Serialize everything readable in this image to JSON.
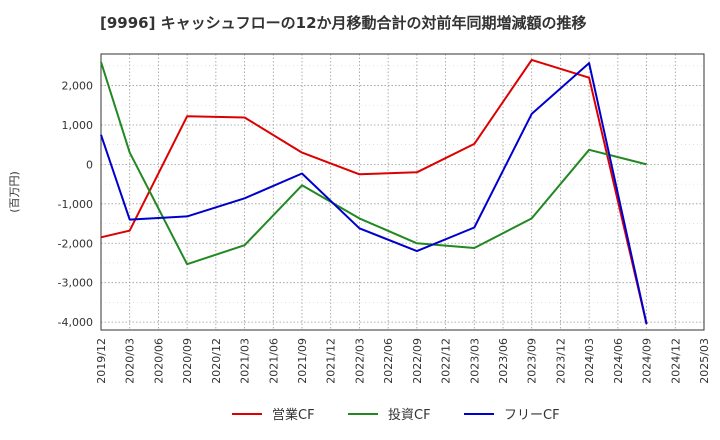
{
  "chart_data": {
    "type": "line",
    "title": "[9996]  キャッシュフローの12か月移動合計の対前年同期増減額の推移",
    "ylabel": "(百万円)",
    "xlabel": "",
    "ylim": [
      -4200,
      2800
    ],
    "yticks": [
      2000,
      1000,
      0,
      -1000,
      -2000,
      -3000,
      -4000
    ],
    "ytick_labels": [
      "2,000",
      "1,000",
      "0",
      "-1,000",
      "-2,000",
      "-3,000",
      "-4,000"
    ],
    "x_tick_labels": [
      "2019/12",
      "2020/03",
      "2020/06",
      "2020/09",
      "2020/12",
      "2021/03",
      "2021/06",
      "2021/09",
      "2021/12",
      "2022/03",
      "2022/06",
      "2022/09",
      "2022/12",
      "2023/03",
      "2023/06",
      "2023/09",
      "2023/12",
      "2024/03",
      "2024/06",
      "2024/09",
      "2024/12",
      "2025/03"
    ],
    "grid": true,
    "legend_position": "bottom",
    "series": [
      {
        "name": "営業CF",
        "color": "#dd0000",
        "x": [
          0,
          1,
          3,
          5,
          7,
          9,
          11,
          13,
          15,
          17,
          19
        ],
        "values": [
          -1850,
          -1680,
          1220,
          1190,
          300,
          -250,
          -200,
          520,
          2650,
          2200,
          -4050
        ]
      },
      {
        "name": "投資CF",
        "color": "#228822",
        "x": [
          0,
          1,
          3,
          5,
          7,
          9,
          11,
          13,
          15,
          17,
          19
        ],
        "values": [
          2600,
          300,
          -2530,
          -2050,
          -530,
          -1370,
          -2000,
          -2120,
          -1370,
          370,
          0
        ]
      },
      {
        "name": "フリーCF",
        "color": "#0000cc",
        "x": [
          0,
          1,
          3,
          5,
          7,
          9,
          11,
          13,
          15,
          17,
          19
        ],
        "values": [
          750,
          -1400,
          -1320,
          -860,
          -230,
          -1620,
          -2200,
          -1600,
          1280,
          2570,
          -4050
        ]
      }
    ]
  }
}
